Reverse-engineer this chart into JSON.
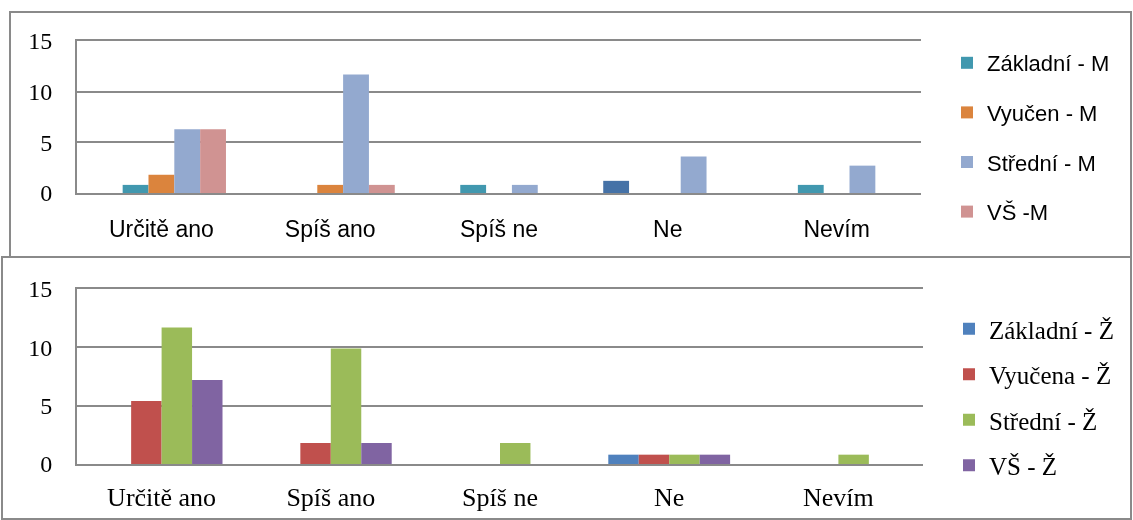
{
  "chart_data": [
    {
      "type": "bar",
      "categories": [
        "Určitě ano",
        "Spíš ano",
        "Spíš ne",
        "Ne",
        "Nevím"
      ],
      "series": [
        {
          "color": "#4572a7",
          "values": [
            0,
            0,
            0,
            1.2,
            0
          ]
        },
        {
          "name": "Základní - M",
          "color": "#4198af",
          "values": [
            0.8,
            0,
            0.8,
            0,
            0.8
          ]
        },
        {
          "name": "Vyučen - M",
          "color": "#db843d",
          "values": [
            1.8,
            0.8,
            0,
            0,
            0
          ]
        },
        {
          "name": "Střední - M",
          "color": "#93a9cf",
          "values": [
            6.3,
            11.7,
            0.8,
            3.6,
            2.7
          ]
        },
        {
          "name": "VŠ -M",
          "color": "#d09392",
          "values": [
            6.3,
            0.8,
            0,
            0,
            0
          ]
        }
      ],
      "ylim": [
        0,
        15
      ],
      "yticks": [
        0,
        5,
        10,
        15
      ],
      "grid": "y",
      "legend": "right"
    },
    {
      "type": "bar",
      "categories": [
        "Určitě ano",
        "Spíš ano",
        "Spíš ne",
        "Ne",
        "Nevím"
      ],
      "series": [
        {
          "name": "Základní - Ž",
          "color": "#4f81bd",
          "values": [
            0,
            0,
            0,
            0.8,
            0
          ]
        },
        {
          "name": "Vyučena - Ž",
          "color": "#c0504d",
          "values": [
            5.4,
            1.8,
            0,
            0.8,
            0
          ]
        },
        {
          "name": "Střední - Ž",
          "color": "#9bbb59",
          "values": [
            11.7,
            9.9,
            1.8,
            0.8,
            0.8
          ]
        },
        {
          "name": "VŠ - Ž",
          "color": "#8064a2",
          "values": [
            7.2,
            1.8,
            0,
            0.8,
            0
          ]
        }
      ],
      "ylim": [
        0,
        15
      ],
      "yticks": [
        0,
        5,
        10,
        15
      ],
      "grid": "y",
      "legend": "right"
    }
  ]
}
